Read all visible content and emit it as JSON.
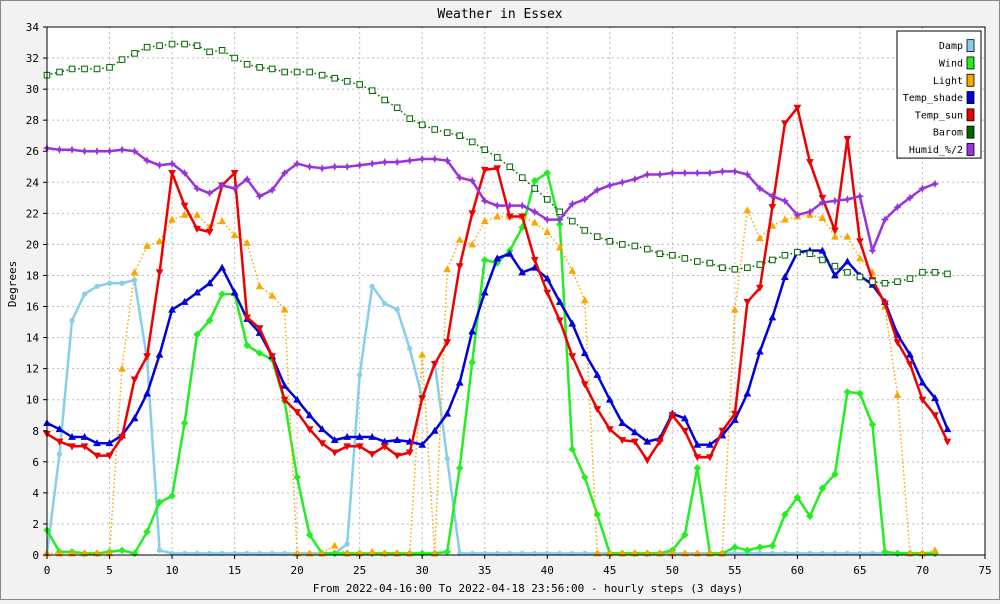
{
  "chart_data": {
    "type": "line",
    "title": "Weather in Essex",
    "xlabel": "From 2022-04-16:00 To 2022-04-18 23:56:00 - hourly steps (3 days)",
    "ylabel": "Degrees",
    "xlim": [
      0,
      75
    ],
    "ylim": [
      0,
      34
    ],
    "xticks": [
      0,
      5,
      10,
      15,
      20,
      25,
      30,
      35,
      40,
      45,
      50,
      55,
      60,
      65,
      70,
      75
    ],
    "yticks": [
      0,
      2,
      4,
      6,
      8,
      10,
      12,
      14,
      16,
      18,
      20,
      22,
      24,
      26,
      28,
      30,
      32,
      34
    ],
    "grid": true,
    "legend_position": "top-right",
    "colors": {
      "background": "#f2f2f2",
      "plot_background": "#ffffff",
      "grid": "#bbbbbb",
      "border": "#000000"
    },
    "series": [
      {
        "name": "Damp",
        "color": "#87ceeb",
        "marker": "dot",
        "line": "solid",
        "width": 2.5,
        "values": [
          0.1,
          6.5,
          15.1,
          16.8,
          17.3,
          17.5,
          17.5,
          17.7,
          12.6,
          0.3,
          0.1,
          0.1,
          0.1,
          0.1,
          0.1,
          0.1,
          0.1,
          0.1,
          0.1,
          0.1,
          0.1,
          0.1,
          0.1,
          0.1,
          0.7,
          11.6,
          17.3,
          16.2,
          15.8,
          13.3,
          10.1,
          12.4,
          6.2,
          0.1,
          0.1,
          0.1,
          0.1,
          0.1,
          0.1,
          0.1,
          0.1,
          0.1,
          0.1,
          0.1,
          0.1,
          0.1,
          0.1,
          0.1,
          0.1,
          0.1,
          0.1,
          0.1,
          0.1,
          0.1,
          0.1,
          0.1,
          0.1,
          0.1,
          0.1,
          0.1,
          0.1,
          0.1,
          0.1,
          0.1,
          0.1,
          0.1,
          0.1,
          0.1,
          0.1,
          0.1,
          0.1,
          0.1
        ]
      },
      {
        "name": "Wind",
        "color": "#22ee22",
        "marker": "diamond",
        "line": "solid",
        "width": 2.5,
        "values": [
          1.6,
          0.2,
          0.2,
          0.1,
          0.1,
          0.2,
          0.3,
          0.1,
          1.5,
          3.4,
          3.8,
          8.5,
          14.2,
          15.1,
          16.8,
          16.8,
          13.5,
          13.0,
          12.6,
          9.9,
          5.0,
          1.3,
          0.1,
          0.1,
          0.1,
          0.1,
          0.1,
          0.1,
          0.1,
          0.1,
          0.1,
          0.1,
          0.2,
          5.6,
          12.4,
          19.0,
          18.8,
          19.6,
          21.1,
          24.1,
          24.6,
          21.3,
          6.8,
          5.0,
          2.6,
          0.1,
          0.1,
          0.1,
          0.1,
          0.1,
          0.3,
          1.3,
          5.6,
          0.1,
          0.1,
          0.5,
          0.3,
          0.5,
          0.6,
          2.6,
          3.7,
          2.5,
          4.3,
          5.2,
          10.5,
          10.4,
          8.4,
          0.2,
          0.1,
          0.1,
          0.1,
          0.1
        ]
      },
      {
        "name": "Light",
        "color": "#ffa500",
        "marker": "triangle",
        "line": "dotted",
        "width": 1.5,
        "values": [
          0.1,
          0.1,
          0.1,
          0.1,
          0.1,
          0.1,
          12.0,
          18.2,
          19.9,
          20.2,
          21.6,
          21.9,
          21.9,
          21.1,
          21.5,
          20.6,
          20.1,
          17.3,
          16.7,
          15.8,
          0.1,
          0.1,
          0.1,
          0.6,
          0.1,
          0.1,
          0.2,
          0.1,
          0.1,
          0.1,
          12.9,
          0.1,
          18.4,
          20.3,
          20.0,
          21.5,
          21.8,
          21.8,
          21.8,
          21.4,
          20.8,
          19.8,
          18.3,
          16.4,
          0.1,
          0.1,
          0.1,
          0.1,
          0.1,
          0.1,
          0.1,
          0.1,
          0.1,
          0.1,
          0.1,
          15.8,
          22.2,
          20.4,
          21.2,
          21.6,
          21.8,
          21.9,
          21.7,
          20.5,
          20.5,
          19.1,
          18.2,
          16.0,
          10.3,
          0.1,
          0.1,
          0.3
        ]
      },
      {
        "name": "Temp_shade",
        "color": "#0000dd",
        "marker": "triangle",
        "line": "solid",
        "width": 2.5,
        "values": [
          8.5,
          8.1,
          7.6,
          7.6,
          7.2,
          7.2,
          7.7,
          8.8,
          10.4,
          12.9,
          15.8,
          16.3,
          16.9,
          17.5,
          18.5,
          16.9,
          15.2,
          14.3,
          12.8,
          10.9,
          10.0,
          9.0,
          8.1,
          7.4,
          7.6,
          7.6,
          7.6,
          7.3,
          7.4,
          7.3,
          7.1,
          8.0,
          9.1,
          11.1,
          14.4,
          16.9,
          19.1,
          19.4,
          18.2,
          18.5,
          17.8,
          16.3,
          14.9,
          13.0,
          11.6,
          10.0,
          8.5,
          7.9,
          7.3,
          7.5,
          9.1,
          8.8,
          7.1,
          7.1,
          7.7,
          8.7,
          10.4,
          13.1,
          15.3,
          17.9,
          19.5,
          19.6,
          19.6,
          18.0,
          18.9,
          18.0,
          17.4,
          16.3,
          14.2,
          12.9,
          11.1,
          10.1,
          8.1
        ]
      },
      {
        "name": "Temp_sun",
        "color": "#ee0000",
        "marker": "triangle-down",
        "line": "solid",
        "width": 2.5,
        "values": [
          7.8,
          7.3,
          7.0,
          7.0,
          6.4,
          6.4,
          7.6,
          11.3,
          12.8,
          18.2,
          24.6,
          22.5,
          21.0,
          20.8,
          23.8,
          24.6,
          15.3,
          14.6,
          12.8,
          10.0,
          9.2,
          8.1,
          7.2,
          6.6,
          7.0,
          7.0,
          6.5,
          7.0,
          6.4,
          6.6,
          10.1,
          12.3,
          13.7,
          18.6,
          22.0,
          24.8,
          24.9,
          21.8,
          21.8,
          19.0,
          16.9,
          15.1,
          12.8,
          11.0,
          9.4,
          8.1,
          7.4,
          7.3,
          6.1,
          7.3,
          9.0,
          8.0,
          6.3,
          6.3,
          8.0,
          9.1,
          16.3,
          17.2,
          22.4,
          27.8,
          28.8,
          25.3,
          23.0,
          20.9,
          26.8,
          20.2,
          17.7,
          16.2,
          13.7,
          12.3,
          10.0,
          9.0,
          7.3
        ]
      },
      {
        "name": "Barom",
        "color": "#006600",
        "marker": "square",
        "line": "dotted",
        "width": 1.5,
        "values": [
          30.9,
          31.1,
          31.3,
          31.3,
          31.3,
          31.4,
          31.9,
          32.3,
          32.7,
          32.8,
          32.9,
          32.9,
          32.8,
          32.4,
          32.5,
          32.0,
          31.6,
          31.4,
          31.3,
          31.1,
          31.1,
          31.1,
          30.9,
          30.7,
          30.5,
          30.3,
          29.9,
          29.3,
          28.8,
          28.1,
          27.7,
          27.4,
          27.2,
          27.0,
          26.6,
          26.1,
          25.6,
          25.0,
          24.3,
          23.6,
          22.9,
          22.1,
          21.5,
          20.9,
          20.5,
          20.2,
          20.0,
          19.9,
          19.7,
          19.4,
          19.3,
          19.1,
          18.9,
          18.8,
          18.5,
          18.4,
          18.5,
          18.7,
          19.0,
          19.3,
          19.5,
          19.4,
          19.0,
          18.6,
          18.2,
          17.9,
          17.6,
          17.5,
          17.6,
          17.8,
          18.2,
          18.2,
          18.1
        ]
      },
      {
        "name": "Humid_%/2",
        "color": "#9933dd",
        "marker": "star",
        "line": "solid",
        "width": 2.5,
        "values": [
          26.2,
          26.1,
          26.1,
          26.0,
          26.0,
          26.0,
          26.1,
          26.0,
          25.4,
          25.1,
          25.2,
          24.6,
          23.6,
          23.3,
          23.8,
          23.6,
          24.2,
          23.1,
          23.5,
          24.6,
          25.2,
          25.0,
          24.9,
          25.0,
          25.0,
          25.1,
          25.2,
          25.3,
          25.3,
          25.4,
          25.5,
          25.5,
          25.4,
          24.3,
          24.1,
          22.8,
          22.5,
          22.5,
          22.5,
          22.1,
          21.6,
          21.6,
          22.6,
          22.9,
          23.5,
          23.8,
          24.0,
          24.2,
          24.5,
          24.5,
          24.6,
          24.6,
          24.6,
          24.6,
          24.7,
          24.7,
          24.5,
          23.6,
          23.1,
          22.8,
          21.9,
          22.1,
          22.7,
          22.8,
          22.9,
          23.1,
          19.6,
          21.6,
          22.4,
          23.0,
          23.6,
          23.9
        ]
      }
    ]
  }
}
